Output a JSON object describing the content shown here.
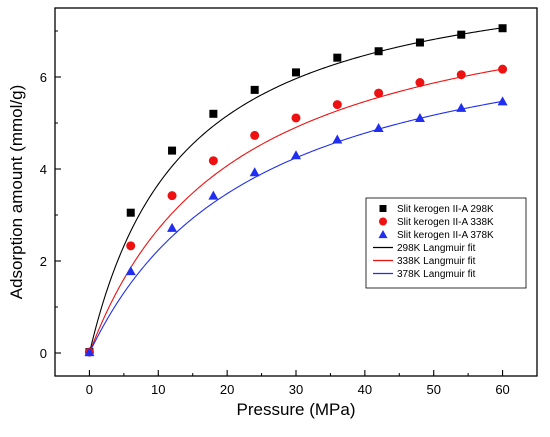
{
  "chart_data": {
    "type": "scatter",
    "title": "",
    "xlabel": "Pressure (MPa)",
    "ylabel": "Adsorption amount (mmol/g)",
    "xlim": [
      -5,
      65
    ],
    "ylim": [
      -0.5,
      7.5
    ],
    "x_ticks": [
      "0",
      "10",
      "20",
      "30",
      "40",
      "50",
      "60"
    ],
    "y_ticks": [
      "0",
      "2",
      "4",
      "6"
    ],
    "grid": false,
    "legend_position": "right",
    "x": [
      0,
      6,
      12,
      18,
      24,
      30,
      36,
      42,
      48,
      54,
      60
    ],
    "series": [
      {
        "name": "Slit kerogen II-A 298K",
        "marker": "square",
        "color": "#000000",
        "values": [
          0.02,
          3.05,
          4.4,
          5.2,
          5.72,
          6.1,
          6.42,
          6.56,
          6.75,
          6.92,
          7.06
        ]
      },
      {
        "name": "Slit kerogen II-A 338K",
        "marker": "circle",
        "color": "#ee1111",
        "values": [
          0.02,
          2.33,
          3.42,
          4.18,
          4.73,
          5.11,
          5.4,
          5.65,
          5.88,
          6.05,
          6.17
        ]
      },
      {
        "name": "Slit kerogen II-A 378K",
        "marker": "triangle",
        "color": "#1f2ef0",
        "values": [
          0.02,
          1.78,
          2.72,
          3.42,
          3.93,
          4.3,
          4.64,
          4.89,
          5.11,
          5.33,
          5.47
        ]
      }
    ],
    "fits": [
      {
        "name": "298K Langmuir fit",
        "color": "#000000",
        "qmax": 8.68,
        "b": 0.0732
      },
      {
        "name": "338K Langmuir fit",
        "color": "#ee1111",
        "qmax": 8.32,
        "b": 0.0479
      },
      {
        "name": "378K Langmuir fit",
        "color": "#1f2ef0",
        "qmax": 7.7,
        "b": 0.0409
      }
    ]
  }
}
